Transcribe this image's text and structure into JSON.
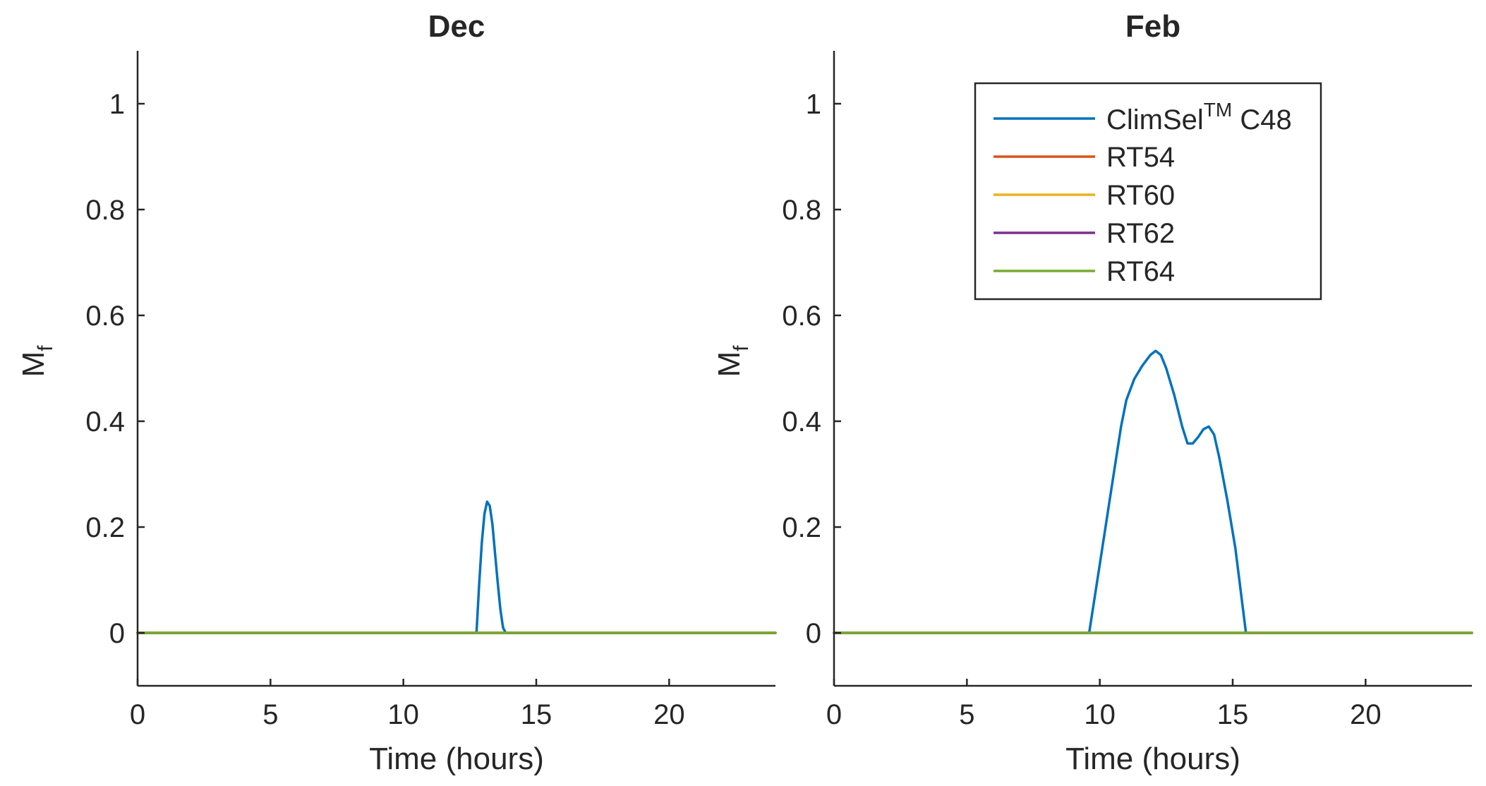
{
  "chart_data": [
    {
      "type": "line",
      "title": "Dec",
      "xlabel": "Time (hours)",
      "ylabel_main": "M",
      "ylabel_sub": "f",
      "xlim": [
        0,
        24
      ],
      "ylim": [
        -0.1,
        1.1
      ],
      "xticks": [
        0,
        5,
        10,
        15,
        20
      ],
      "xtick_labels": [
        "0",
        "5",
        "10",
        "15",
        "20"
      ],
      "yticks": [
        0,
        0.2,
        0.4,
        0.6,
        0.8,
        1
      ],
      "ytick_labels": [
        "0",
        "0.2",
        "0.4",
        "0.6",
        "0.8",
        "1"
      ],
      "grid": false,
      "series": [
        {
          "name": "ClimSel C48",
          "color": "#0072BD",
          "x": [
            0,
            12.75,
            12.85,
            12.95,
            13.05,
            13.15,
            13.25,
            13.35,
            13.45,
            13.55,
            13.65,
            13.75,
            13.85,
            24
          ],
          "y": [
            0,
            0,
            0.09,
            0.17,
            0.225,
            0.248,
            0.24,
            0.205,
            0.15,
            0.095,
            0.045,
            0.01,
            0,
            0
          ]
        },
        {
          "name": "RT54",
          "color": "#D95319",
          "x": [
            0,
            24
          ],
          "y": [
            0,
            0
          ]
        },
        {
          "name": "RT60",
          "color": "#EDB120",
          "x": [
            0,
            24
          ],
          "y": [
            0,
            0
          ]
        },
        {
          "name": "RT62",
          "color": "#7E2F8E",
          "x": [
            0,
            24
          ],
          "y": [
            0,
            0
          ]
        },
        {
          "name": "RT64",
          "color": "#77AC30",
          "x": [
            0,
            24
          ],
          "y": [
            0,
            0
          ]
        }
      ]
    },
    {
      "type": "line",
      "title": "Feb",
      "xlabel": "Time (hours)",
      "ylabel_main": "M",
      "ylabel_sub": "f",
      "xlim": [
        0,
        24
      ],
      "ylim": [
        -0.1,
        1.1
      ],
      "xticks": [
        0,
        5,
        10,
        15,
        20
      ],
      "xtick_labels": [
        "0",
        "5",
        "10",
        "15",
        "20"
      ],
      "yticks": [
        0,
        0.2,
        0.4,
        0.6,
        0.8,
        1
      ],
      "ytick_labels": [
        "0",
        "0.2",
        "0.4",
        "0.6",
        "0.8",
        "1"
      ],
      "grid": false,
      "legend_position": "top-right",
      "series": [
        {
          "name": "ClimSel C48",
          "color": "#0072BD",
          "x": [
            0,
            9.6,
            10.0,
            10.4,
            10.8,
            11.0,
            11.3,
            11.6,
            11.9,
            12.1,
            12.3,
            12.5,
            12.8,
            13.1,
            13.3,
            13.5,
            13.7,
            13.9,
            14.1,
            14.3,
            14.5,
            14.8,
            15.1,
            15.3,
            15.5,
            24
          ],
          "y": [
            0,
            0,
            0.13,
            0.26,
            0.39,
            0.44,
            0.48,
            0.505,
            0.525,
            0.533,
            0.525,
            0.5,
            0.45,
            0.39,
            0.358,
            0.358,
            0.37,
            0.385,
            0.39,
            0.375,
            0.33,
            0.25,
            0.16,
            0.08,
            0,
            0
          ]
        },
        {
          "name": "RT54",
          "color": "#D95319",
          "x": [
            0,
            24
          ],
          "y": [
            0,
            0
          ]
        },
        {
          "name": "RT60",
          "color": "#EDB120",
          "x": [
            0,
            24
          ],
          "y": [
            0,
            0
          ]
        },
        {
          "name": "RT62",
          "color": "#7E2F8E",
          "x": [
            0,
            24
          ],
          "y": [
            0,
            0
          ]
        },
        {
          "name": "RT64",
          "color": "#77AC30",
          "x": [
            0,
            24
          ],
          "y": [
            0,
            0
          ]
        }
      ]
    }
  ],
  "legend": {
    "entries": [
      {
        "label": "ClimSel",
        "superscript": "TM",
        "suffix": " C48",
        "color": "#0072BD"
      },
      {
        "label": "RT54",
        "color": "#D95319"
      },
      {
        "label": "RT60",
        "color": "#EDB120"
      },
      {
        "label": "RT62",
        "color": "#7E2F8E"
      },
      {
        "label": "RT64",
        "color": "#77AC30"
      }
    ]
  }
}
